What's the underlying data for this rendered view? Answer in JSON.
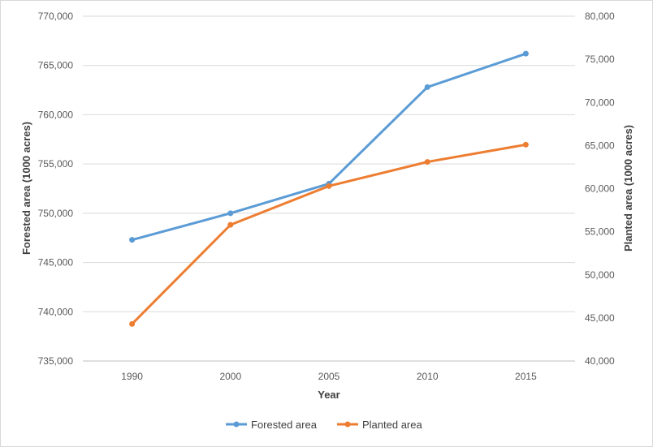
{
  "chart_data": {
    "type": "line",
    "categories": [
      "1990",
      "2000",
      "2005",
      "2010",
      "2015"
    ],
    "xlabel": "Year",
    "ylabel_left": "Forested area (1000 acres)",
    "ylabel_right": "Planted area (1000 acres)",
    "ylim_left": [
      735000,
      770000
    ],
    "ylim_right": [
      40000,
      80000
    ],
    "yticks_left": [
      "735,000",
      "740,000",
      "745,000",
      "750,000",
      "755,000",
      "760,000",
      "765,000",
      "770,000"
    ],
    "yticks_right": [
      "40,000",
      "45,000",
      "50,000",
      "55,000",
      "60,000",
      "65,000",
      "70,000",
      "75,000",
      "80,000"
    ],
    "grid": true,
    "legend_position": "bottom",
    "series": [
      {
        "name": "Forested area",
        "axis": "left",
        "color": "#5b9bd5",
        "values": [
          747300,
          750000,
          753000,
          762800,
          766200
        ]
      },
      {
        "name": "Planted area",
        "axis": "right",
        "color": "#ed7d31",
        "values": [
          44300,
          55800,
          60300,
          63100,
          65100
        ]
      }
    ]
  }
}
